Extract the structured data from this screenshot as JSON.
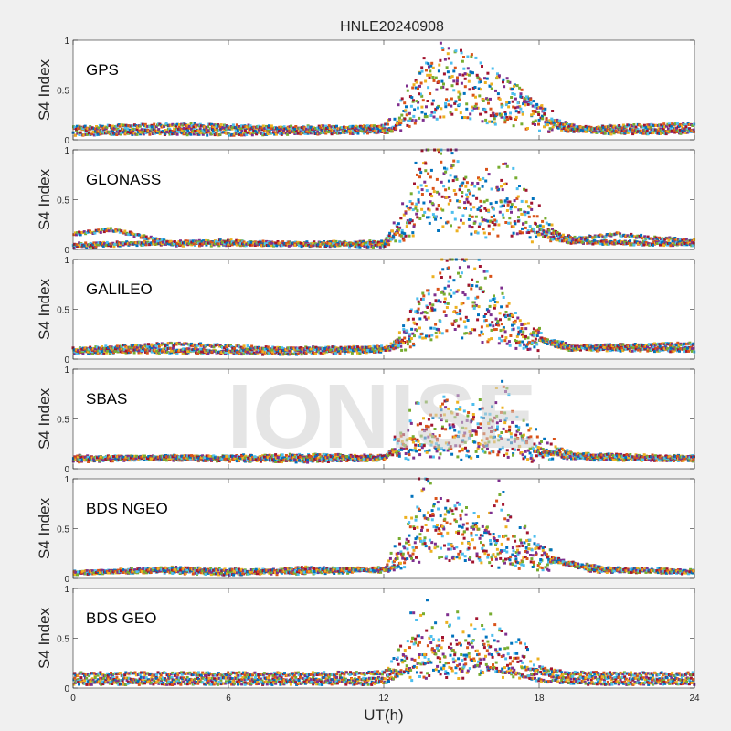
{
  "title": "HNLE20240908",
  "watermark": "IONISE",
  "chart_data": {
    "type": "scatter",
    "title": "HNLE20240908",
    "xlabel": "UT(h)",
    "ylabel": "S4 Index",
    "xlim": [
      0,
      24
    ],
    "ylim": [
      0,
      1
    ],
    "xticks": [
      0,
      6,
      12,
      18,
      24
    ],
    "xtick_labels": [
      "0",
      "6",
      "12",
      "18",
      "24"
    ],
    "yticks": [
      0,
      0.5,
      1
    ],
    "ytick_labels": [
      "0",
      "0.5",
      "1"
    ],
    "grid": false,
    "series_colors": [
      "#0072BD",
      "#D95319",
      "#EDB120",
      "#7E2F8E",
      "#77AC30",
      "#4DBEEE",
      "#A2142F"
    ],
    "panels": [
      {
        "label": "GPS",
        "series": [
          {
            "x": [
              0,
              3,
              6,
              9,
              12.3,
              13,
              13.5,
              14,
              14.5,
              15,
              15.5,
              16,
              16.5,
              17,
              17.5,
              18,
              18.5,
              19,
              21,
              24
            ],
            "y": [
              0.06,
              0.07,
              0.06,
              0.07,
              0.08,
              0.25,
              0.6,
              0.45,
              0.75,
              0.55,
              0.7,
              0.45,
              0.5,
              0.35,
              0.3,
              0.25,
              0.15,
              0.1,
              0.07,
              0.08
            ]
          },
          {
            "x": [
              0,
              3,
              6,
              9,
              12.3,
              13,
              13.5,
              14,
              14.5,
              15,
              15.5,
              16,
              16.5,
              17,
              17.5,
              18,
              18.5,
              19,
              21,
              24
            ],
            "y": [
              0.1,
              0.09,
              0.11,
              0.1,
              0.1,
              0.3,
              0.55,
              0.5,
              0.6,
              0.65,
              0.5,
              0.45,
              0.35,
              0.4,
              0.3,
              0.25,
              0.2,
              0.12,
              0.1,
              0.1
            ]
          },
          {
            "x": [
              0,
              4,
              8,
              12,
              13.2,
              13.8,
              14.5,
              15.2,
              16,
              17,
              18,
              19.5,
              24
            ],
            "y": [
              0.12,
              0.15,
              0.12,
              0.13,
              0.45,
              0.6,
              0.7,
              0.6,
              0.5,
              0.4,
              0.25,
              0.12,
              0.15
            ]
          }
        ]
      },
      {
        "label": "GLONASS",
        "series": [
          {
            "x": [
              0,
              1.5,
              4,
              8,
              12,
              13,
              13.5,
              14,
              14.5,
              15,
              16,
              17,
              18,
              19,
              21,
              24
            ],
            "y": [
              0.15,
              0.2,
              0.05,
              0.06,
              0.07,
              0.4,
              0.8,
              0.7,
              0.6,
              0.5,
              0.45,
              0.55,
              0.3,
              0.1,
              0.15,
              0.08
            ]
          },
          {
            "x": [
              0,
              3,
              6,
              9,
              12.2,
              13,
              13.5,
              14,
              14.5,
              15,
              15.5,
              16,
              17,
              18,
              19,
              24
            ],
            "y": [
              0.03,
              0.06,
              0.08,
              0.05,
              0.06,
              0.35,
              0.6,
              0.5,
              0.45,
              0.55,
              0.4,
              0.3,
              0.35,
              0.15,
              0.08,
              0.06
            ]
          },
          {
            "x": [
              0,
              4,
              8,
              12,
              13,
              13.6,
              14.2,
              15,
              16,
              17,
              18,
              20,
              24
            ],
            "y": [
              0.05,
              0.07,
              0.05,
              0.04,
              0.3,
              0.6,
              0.8,
              0.7,
              0.55,
              0.6,
              0.2,
              0.07,
              0.05
            ]
          }
        ]
      },
      {
        "label": "GALILEO",
        "series": [
          {
            "x": [
              0,
              2,
              5,
              8,
              12,
              13,
              13.5,
              14,
              14.5,
              15,
              15.5,
              16,
              16.5,
              17,
              18,
              19,
              21,
              24
            ],
            "y": [
              0.06,
              0.08,
              0.07,
              0.06,
              0.08,
              0.3,
              0.55,
              0.6,
              0.8,
              0.75,
              0.7,
              0.6,
              0.5,
              0.35,
              0.2,
              0.1,
              0.12,
              0.1
            ]
          },
          {
            "x": [
              0,
              3,
              6,
              9,
              12.3,
              13.2,
              14,
              14.8,
              15.5,
              16.2,
              17,
              18,
              20,
              24
            ],
            "y": [
              0.09,
              0.1,
              0.08,
              0.1,
              0.1,
              0.4,
              0.5,
              0.6,
              0.5,
              0.45,
              0.3,
              0.2,
              0.1,
              0.09
            ]
          },
          {
            "x": [
              0,
              4,
              8,
              12.5,
              13.5,
              14.5,
              15.5,
              16.5,
              17.5,
              19,
              24
            ],
            "y": [
              0.1,
              0.15,
              0.1,
              0.12,
              0.45,
              0.65,
              0.55,
              0.4,
              0.25,
              0.12,
              0.15
            ]
          }
        ]
      },
      {
        "label": "SBAS",
        "series": [
          {
            "x": [
              0,
              3,
              6,
              9,
              12,
              13,
              13.5,
              14,
              14.5,
              15,
              15.5,
              16,
              17,
              18,
              19,
              21,
              24
            ],
            "y": [
              0.08,
              0.1,
              0.09,
              0.08,
              0.1,
              0.4,
              0.5,
              0.35,
              0.6,
              0.45,
              0.5,
              0.4,
              0.3,
              0.2,
              0.12,
              0.1,
              0.09
            ]
          },
          {
            "x": [
              0,
              3,
              6,
              9,
              12,
              13.2,
              14,
              15,
              16,
              16.5,
              17,
              18,
              20,
              24
            ],
            "y": [
              0.12,
              0.11,
              0.12,
              0.13,
              0.12,
              0.25,
              0.3,
              0.25,
              0.3,
              0.7,
              0.4,
              0.25,
              0.1,
              0.12
            ]
          },
          {
            "x": [
              0,
              4,
              8,
              12,
              13,
              14,
              15,
              16,
              17,
              18,
              24
            ],
            "y": [
              0.1,
              0.12,
              0.1,
              0.11,
              0.3,
              0.45,
              0.4,
              0.5,
              0.35,
              0.15,
              0.11
            ]
          }
        ]
      },
      {
        "label": "BDS NGEO",
        "series": [
          {
            "x": [
              0,
              2,
              4,
              6,
              9,
              12,
              13,
              13.5,
              14,
              14.5,
              15,
              15.5,
              16,
              16.5,
              17,
              17.5,
              18,
              19,
              20,
              24
            ],
            "y": [
              0.05,
              0.08,
              0.1,
              0.05,
              0.1,
              0.08,
              0.5,
              0.8,
              0.6,
              0.55,
              0.5,
              0.45,
              0.4,
              0.7,
              0.45,
              0.35,
              0.25,
              0.15,
              0.08,
              0.06
            ]
          },
          {
            "x": [
              0,
              3,
              6,
              9,
              12.2,
              13,
              13.8,
              14.5,
              15.2,
              16,
              16.8,
              17.5,
              18.5,
              20,
              24
            ],
            "y": [
              0.06,
              0.07,
              0.05,
              0.06,
              0.08,
              0.4,
              0.65,
              0.45,
              0.5,
              0.35,
              0.3,
              0.25,
              0.2,
              0.1,
              0.07
            ]
          },
          {
            "x": [
              0,
              4,
              8,
              12.5,
              13.5,
              14.5,
              15.5,
              16.5,
              17.5,
              18.5,
              21,
              24
            ],
            "y": [
              0.05,
              0.1,
              0.07,
              0.1,
              0.5,
              0.55,
              0.4,
              0.3,
              0.28,
              0.18,
              0.08,
              0.06
            ]
          }
        ]
      },
      {
        "label": "BDS GEO",
        "series": [
          {
            "x": [
              0,
              3,
              6,
              9,
              12,
              12.5,
              13,
              13.5,
              14,
              14.5,
              15,
              15.5,
              16,
              16.5,
              17,
              17.5,
              18,
              19,
              21,
              24
            ],
            "y": [
              0.14,
              0.14,
              0.14,
              0.14,
              0.15,
              0.25,
              0.5,
              0.65,
              0.55,
              0.6,
              0.5,
              0.45,
              0.55,
              0.4,
              0.35,
              0.3,
              0.2,
              0.15,
              0.14,
              0.14
            ]
          },
          {
            "x": [
              0,
              3,
              6,
              9,
              12,
              13,
              13.5,
              14,
              15,
              16,
              17,
              18,
              19,
              24
            ],
            "y": [
              0.09,
              0.09,
              0.09,
              0.09,
              0.09,
              0.3,
              0.45,
              0.35,
              0.3,
              0.35,
              0.25,
              0.15,
              0.1,
              0.09
            ]
          },
          {
            "x": [
              0,
              3,
              6,
              9,
              12,
              13,
              14,
              15,
              16,
              17,
              18,
              20,
              24
            ],
            "y": [
              0.05,
              0.05,
              0.05,
              0.05,
              0.05,
              0.2,
              0.3,
              0.25,
              0.2,
              0.15,
              0.08,
              0.05,
              0.05
            ]
          }
        ]
      }
    ]
  }
}
